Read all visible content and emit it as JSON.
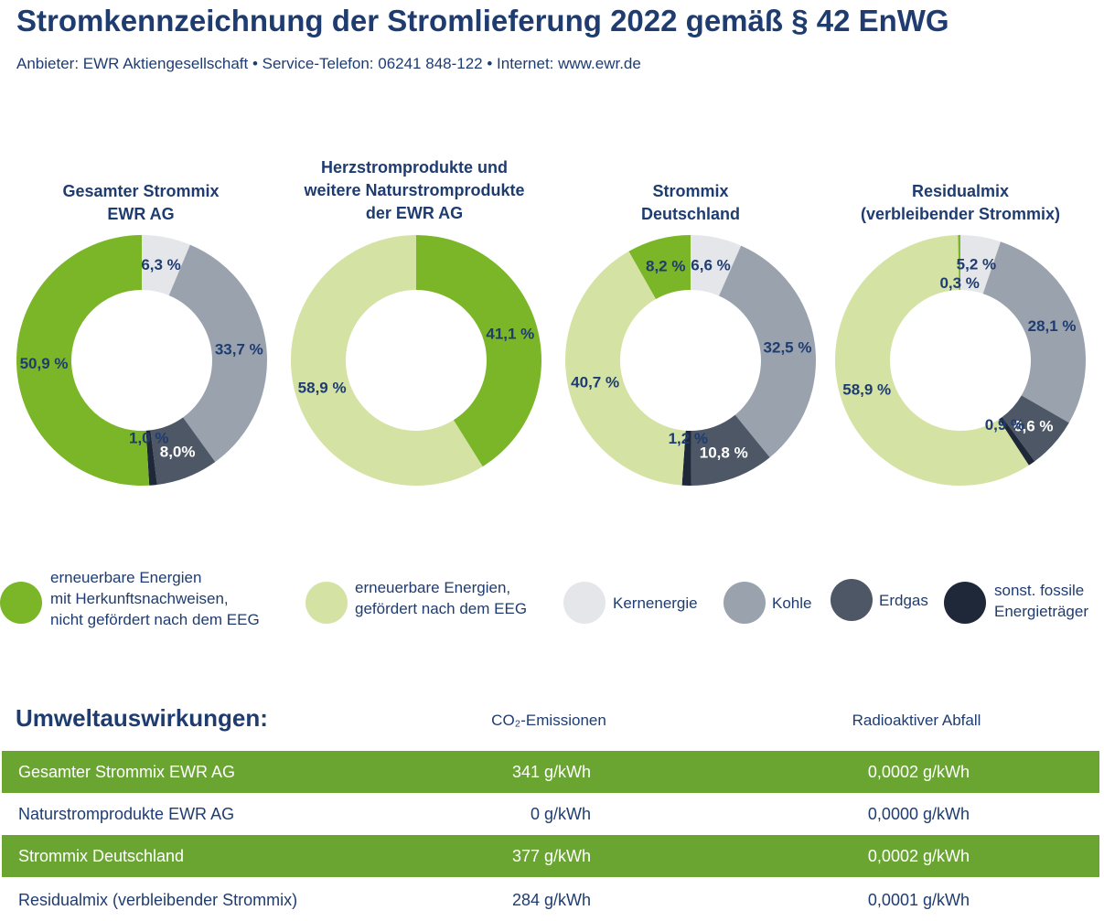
{
  "header": {
    "title": "Stromkennzeichnung der Stromlieferung 2022 gemäß § 42 EnWG",
    "subtitle": "Anbieter: EWR Aktiengesellschaft • Service-Telefon: 06241 848-122 • Internet: www.ewr.de"
  },
  "colors": {
    "ee_hkn": "#7ab627",
    "ee_eeg": "#d4e3a3",
    "kern": "#e4e6ea",
    "kohle": "#9aa2ae",
    "erdgas": "#4d5766",
    "sonst": "#1f2839",
    "text": "#1f3c70"
  },
  "chart_data": [
    {
      "type": "pie",
      "title": "Gesamter Strommix\nEWR AG",
      "slices": [
        {
          "category": "kern",
          "value": 6.3,
          "label": "6,3 %"
        },
        {
          "category": "kohle",
          "value": 33.7,
          "label": "33,7 %"
        },
        {
          "category": "erdgas",
          "value": 8.0,
          "label": "8,0%"
        },
        {
          "category": "sonst",
          "value": 1.0,
          "label": "1,0 %"
        },
        {
          "category": "ee_hkn",
          "value": 50.9,
          "label": "50,9 %"
        }
      ]
    },
    {
      "type": "pie",
      "title": "Herzstromprodukte und\nweitere Naturstromprodukte\nder EWR AG",
      "slices": [
        {
          "category": "ee_hkn",
          "value": 41.1,
          "label": "41,1 %"
        },
        {
          "category": "ee_eeg",
          "value": 58.9,
          "label": "58,9 %"
        }
      ]
    },
    {
      "type": "pie",
      "title": "Strommix\nDeutschland",
      "slices": [
        {
          "category": "kern",
          "value": 6.6,
          "label": "6,6 %"
        },
        {
          "category": "kohle",
          "value": 32.5,
          "label": "32,5 %"
        },
        {
          "category": "erdgas",
          "value": 10.8,
          "label": "10,8 %"
        },
        {
          "category": "sonst",
          "value": 1.2,
          "label": "1,2 %"
        },
        {
          "category": "ee_eeg",
          "value": 40.7,
          "label": "40,7 %"
        },
        {
          "category": "ee_hkn",
          "value": 8.2,
          "label": "8,2 %"
        }
      ]
    },
    {
      "type": "pie",
      "title": "Residualmix\n(verbleibender Strommix)",
      "slices": [
        {
          "category": "kern",
          "value": 5.2,
          "label": "5,2 %"
        },
        {
          "category": "kohle",
          "value": 28.1,
          "label": "28,1 %"
        },
        {
          "category": "erdgas",
          "value": 6.6,
          "label": "6,6 %"
        },
        {
          "category": "sonst",
          "value": 0.9,
          "label": "0,9 %"
        },
        {
          "category": "ee_eeg",
          "value": 58.9,
          "label": "58,9 %"
        },
        {
          "category": "ee_hkn",
          "value": 0.3,
          "label": "0,3 %"
        }
      ]
    }
  ],
  "legend": [
    {
      "category": "ee_hkn",
      "label": "erneuerbare Energien\nmit Herkunftsnachweisen,\nnicht gefördert nach dem EEG"
    },
    {
      "category": "ee_eeg",
      "label": "erneuerbare Energien,\ngefördert nach dem EEG"
    },
    {
      "category": "kern",
      "label": "Kernenergie"
    },
    {
      "category": "kohle",
      "label": "Kohle"
    },
    {
      "category": "erdgas",
      "label": "Erdgas"
    },
    {
      "category": "sonst",
      "label": "sonst. fossile\nEnergieträger"
    }
  ],
  "environment": {
    "heading": "Umweltauswirkungen:",
    "col_co2": "CO₂-Emissionen",
    "col_radio": "Radioaktiver Abfall",
    "rows": [
      {
        "name": "Gesamter Strommix EWR AG",
        "co2": "341 g/kWh",
        "radio": "0,0002 g/kWh"
      },
      {
        "name": "Naturstromprodukte EWR AG",
        "co2": "0 g/kWh",
        "radio": "0,0000 g/kWh"
      },
      {
        "name": "Strommix Deutschland",
        "co2": "377 g/kWh",
        "radio": "0,0002 g/kWh"
      },
      {
        "name": "Residualmix (verbleibender Strommix)",
        "co2": "284 g/kWh",
        "radio": "0,0001 g/kWh"
      }
    ]
  }
}
